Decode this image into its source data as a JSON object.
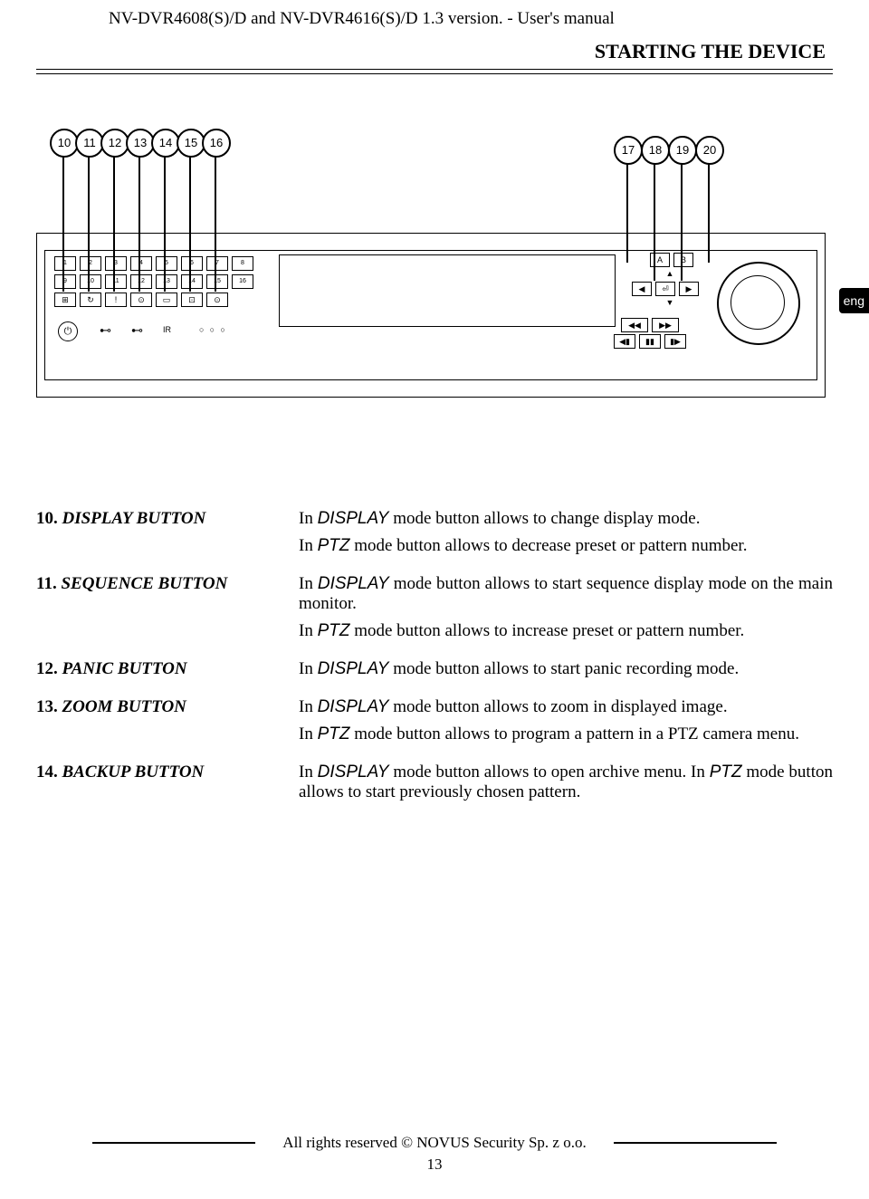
{
  "header": {
    "title": "NV-DVR4608(S)/D and NV-DVR4616(S)/D 1.3 version. - User's manual",
    "section": "STARTING THE DEVICE"
  },
  "lang_tab": "eng",
  "callouts": {
    "left": [
      "10",
      "11",
      "12",
      "13",
      "14",
      "15",
      "16"
    ],
    "right": [
      "17",
      "18",
      "19",
      "20"
    ]
  },
  "device": {
    "row1": [
      "1",
      "2",
      "3",
      "4",
      "5",
      "6",
      "7",
      "8"
    ],
    "row2": [
      "9",
      "10",
      "11",
      "12",
      "13",
      "14",
      "15",
      "16"
    ],
    "row3_icons": [
      "⊞",
      "↻",
      "!",
      "⊙",
      "▭",
      "⊡",
      "⊙"
    ],
    "ir_label": "IR",
    "dpad": {
      "up": "▲",
      "down": "▼",
      "left": "◀",
      "right": "▶",
      "center": "⏎",
      "a": "A",
      "b": "B"
    },
    "transport": {
      "rew": "◀◀",
      "ffwd": "▶▶",
      "prev": "◀▮",
      "pause": "▮▮",
      "next": "▮▶"
    }
  },
  "defs": [
    {
      "num": "10.",
      "term": "DISPLAY BUTTON",
      "paras": [
        [
          {
            "t": "In "
          },
          {
            "t": "DISPLAY",
            "mode": true
          },
          {
            "t": " mode button allows to change display mode."
          }
        ],
        [
          {
            "t": "In "
          },
          {
            "t": "PTZ",
            "mode": true
          },
          {
            "t": " mode button allows to decrease preset or pattern number."
          }
        ]
      ]
    },
    {
      "num": "11.",
      "term": "SEQUENCE BUTTON",
      "paras": [
        [
          {
            "t": "In "
          },
          {
            "t": "DISPLAY",
            "mode": true
          },
          {
            "t": " mode button allows to start sequence display mode on the main monitor."
          }
        ],
        [
          {
            "t": "In "
          },
          {
            "t": "PTZ",
            "mode": true
          },
          {
            "t": " mode button allows to increase preset or pattern number."
          }
        ]
      ]
    },
    {
      "num": "12.",
      "term": "PANIC BUTTON",
      "paras": [
        [
          {
            "t": "In "
          },
          {
            "t": "DISPLAY",
            "mode": true
          },
          {
            "t": " mode button allows to start panic recording mode."
          }
        ]
      ]
    },
    {
      "num": "13.",
      "term": "ZOOM BUTTON",
      "paras": [
        [
          {
            "t": "In "
          },
          {
            "t": "DISPLAY",
            "mode": true
          },
          {
            "t": " mode button allows to zoom in displayed image."
          }
        ],
        [
          {
            "t": "In "
          },
          {
            "t": "PTZ",
            "mode": true
          },
          {
            "t": " mode button allows to program a pattern in a PTZ camera menu."
          }
        ]
      ]
    },
    {
      "num": "14.",
      "term": "BACKUP BUTTON",
      "paras": [
        [
          {
            "t": "In "
          },
          {
            "t": "DISPLAY",
            "mode": true
          },
          {
            "t": " mode button allows to open archive menu. In "
          },
          {
            "t": "PTZ",
            "mode": true
          },
          {
            "t": " mode button allows to start previously chosen pattern."
          }
        ]
      ]
    }
  ],
  "footer": {
    "copyright": "All rights reserved © NOVUS Security Sp. z o.o.",
    "page": "13"
  }
}
